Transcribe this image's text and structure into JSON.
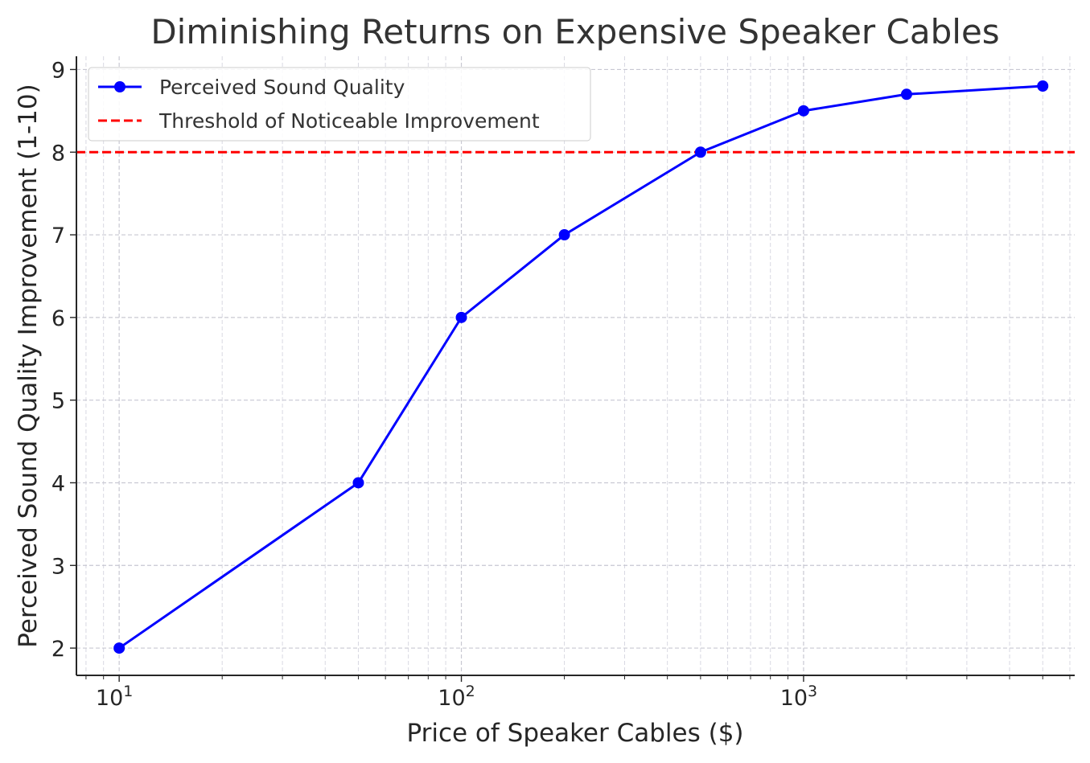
{
  "chart_data": {
    "type": "line",
    "title": "Diminishing Returns on Expensive Speaker Cables",
    "xlabel": "Price of Speaker Cables ($)",
    "ylabel": "Perceived Sound Quality Improvement (1-10)",
    "x_scale": "log",
    "xlim": [
      7.5,
      6200
    ],
    "ylim": [
      1.67,
      9.16
    ],
    "x_ticks": [
      {
        "value": 10,
        "base": "10",
        "exp": "1"
      },
      {
        "value": 100,
        "base": "10",
        "exp": "2"
      },
      {
        "value": 1000,
        "base": "10",
        "exp": "3"
      }
    ],
    "y_ticks": [
      2,
      3,
      4,
      5,
      6,
      7,
      8,
      9
    ],
    "grid": true,
    "legend_position": "top-left",
    "series": [
      {
        "name": "Perceived Sound Quality",
        "color": "#0000ff",
        "marker": "circle",
        "x": [
          10,
          50,
          100,
          200,
          500,
          1000,
          2000,
          5000
        ],
        "y": [
          2,
          4,
          6,
          7,
          8,
          8.5,
          8.7,
          8.8
        ]
      }
    ],
    "reference_lines": [
      {
        "name": "Threshold of Noticeable Improvement",
        "orientation": "horizontal",
        "value": 8,
        "color": "#ff0000",
        "style": "dashed"
      }
    ]
  }
}
